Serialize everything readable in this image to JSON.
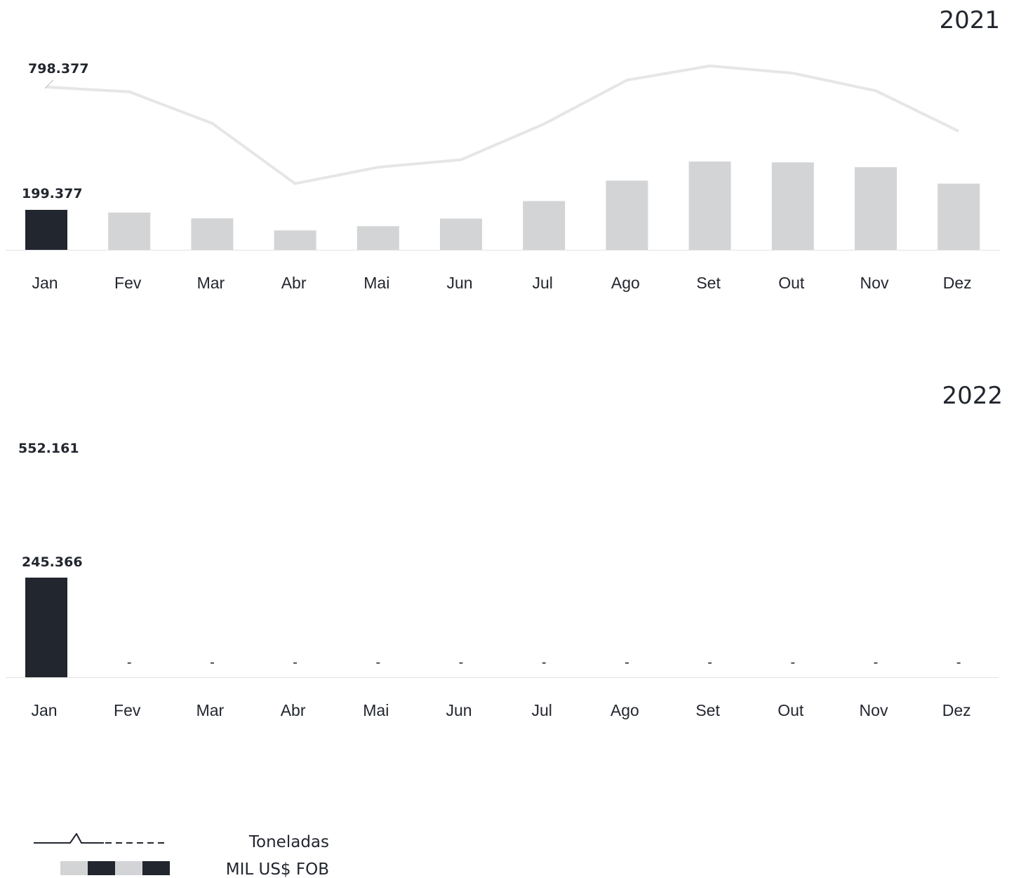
{
  "colors": {
    "highlight": "#22262f",
    "bar": "#d3d4d6",
    "line": "#e6e6e6",
    "axis": "#e3e3e3"
  },
  "legend": {
    "line_label": "Toneladas",
    "bar_label": "MIL US$ FOB"
  },
  "chart_data": [
    {
      "type": "bar",
      "title": "2021",
      "categories": [
        "Jan",
        "Fev",
        "Mar",
        "Abr",
        "Mai",
        "Jun",
        "Jul",
        "Ago",
        "Set",
        "Out",
        "Nov",
        "Dez"
      ],
      "series": [
        {
          "name": "MIL US$ FOB",
          "values": [
            199377,
            186000,
            157000,
            97000,
            118000,
            156000,
            243000,
            345000,
            440000,
            436000,
            412000,
            330000
          ]
        },
        {
          "name": "Toneladas",
          "values": [
            798377,
            775000,
            620000,
            325000,
            405000,
            442000,
            617000,
            832000,
            902000,
            866000,
            780000,
            582000
          ]
        }
      ],
      "data_labels": {
        "bar": "199.377",
        "line": "798.377"
      },
      "highlight_index": 0
    },
    {
      "type": "bar",
      "title": "2022",
      "categories": [
        "Jan",
        "Fev",
        "Mar",
        "Abr",
        "Mai",
        "Jun",
        "Jul",
        "Ago",
        "Set",
        "Out",
        "Nov",
        "Dez"
      ],
      "series": [
        {
          "name": "MIL US$ FOB",
          "values": [
            245366,
            null,
            null,
            null,
            null,
            null,
            null,
            null,
            null,
            null,
            null,
            null
          ]
        },
        {
          "name": "Toneladas",
          "values": [
            552161,
            null,
            null,
            null,
            null,
            null,
            null,
            null,
            null,
            null,
            null,
            null
          ]
        }
      ],
      "data_labels": {
        "bar": "245.366",
        "line": "552.161"
      },
      "missing_label": "-",
      "highlight_index": 0
    }
  ]
}
